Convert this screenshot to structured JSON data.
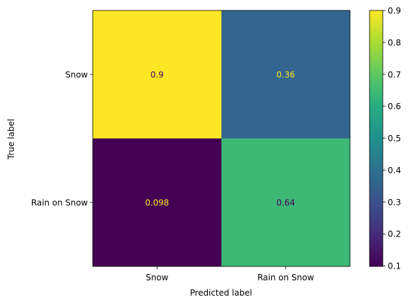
{
  "chart_data": {
    "type": "heatmap",
    "title": "",
    "xlabel": "Predicted label",
    "ylabel": "True label",
    "x_categories": [
      "Snow",
      "Rain on Snow"
    ],
    "y_categories": [
      "Snow",
      "Rain on Snow"
    ],
    "values": [
      [
        0.9,
        0.36
      ],
      [
        0.098,
        0.64
      ]
    ],
    "cell_labels": [
      [
        "0.9",
        "0.36"
      ],
      [
        "0.098",
        "0.64"
      ]
    ],
    "colormap": "viridis",
    "colorbar": {
      "range": [
        0.098,
        0.9
      ],
      "ticks": [
        0.1,
        0.2,
        0.3,
        0.4,
        0.5,
        0.6,
        0.7,
        0.8,
        0.9
      ],
      "tick_labels": [
        "0.1",
        "0.2",
        "0.3",
        "0.4",
        "0.5",
        "0.6",
        "0.7",
        "0.8",
        "0.9"
      ]
    },
    "grid": false
  }
}
